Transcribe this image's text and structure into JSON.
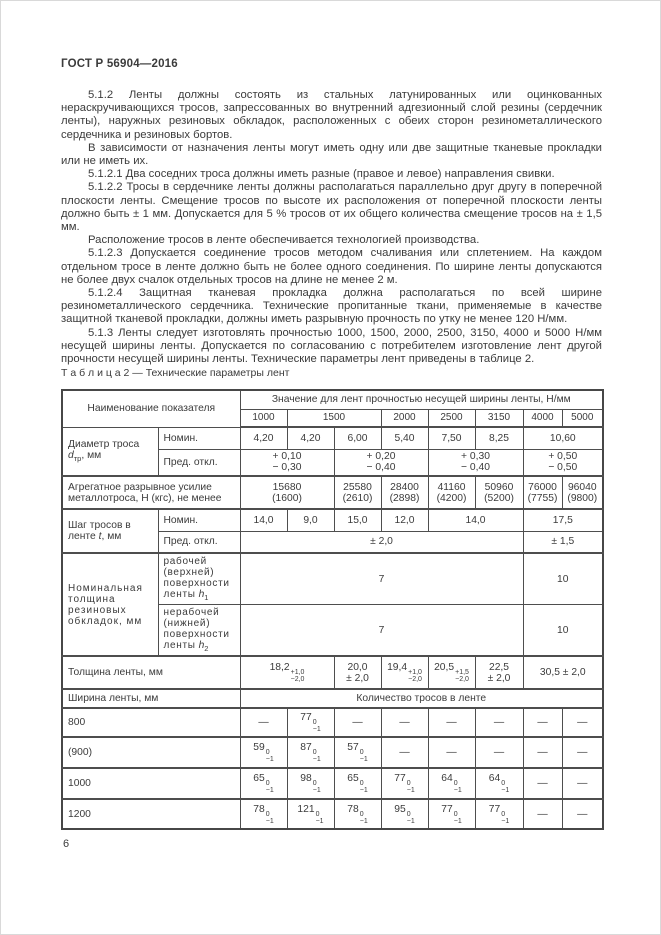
{
  "header": {
    "title": "ГОСТ Р 56904—2016"
  },
  "page_number": "6",
  "paragraphs": [
    "5.1.2 Ленты должны состоять из стальных латунированных или оцинкованных нераскручивающихся тросов, запрессованных во внутренний адгезионный слой резины (сердечник ленты), наружных резиновых обкладок, расположенных с обеих сторон резинометаллического сердечника и резиновых бортов.",
    "В зависимости от назначения ленты могут иметь одну или две защитные тканевые прокладки или не иметь их.",
    "5.1.2.1 Два соседних троса должны иметь разные (правое и левое) направления свивки.",
    "5.1.2.2 Тросы в сердечнике ленты должны располагаться параллельно друг другу в поперечной плоскости ленты. Смещение тросов по высоте их расположения от поперечной плоскости ленты должно быть ± 1 мм. Допускается для 5 % тросов от их общего количества смещение тросов на ± 1,5 мм.",
    "Расположение тросов в ленте обеспечивается технологией производства.",
    "5.1.2.3 Допускается соединение тросов методом счаливания или сплетением. На каждом отдельном тросе в ленте должно быть не более одного соединения. По ширине ленты допускаются не более двух счалок отдельных тросов на длине не менее 2 м.",
    "5.1.2.4 Защитная тканевая прокладка должна располагаться по всей ширине резинометаллического сердечника. Технические пропитанные ткани, применяемые в качестве защитной тканевой прокладки, должны иметь разрывную прочность по утку не менее 120 Н/мм.",
    "5.1.3 Ленты следует изготовлять прочностью 1000, 1500, 2000, 2500, 3150, 4000 и 5000 Н/мм несущей ширины ленты. Допускается по согласованию с потребителем изготовление лент другой прочности несущей ширины ленты. Технические параметры лент приведены в таблице 2."
  ],
  "table2": {
    "caption": "Т а б л и ц а  2 — Технические параметры лент",
    "head": {
      "name": "Наименование  показателя",
      "values_title": "Значение для лент прочностью несущей ширины ленты, Н/мм",
      "strengths": [
        "1000",
        "1500",
        "2000",
        "2500",
        "3150",
        "4000",
        "5000"
      ]
    },
    "diameter": {
      "label": "Диаметр троса",
      "sym": "d",
      "sym_sub": "тр",
      "unit": ", мм",
      "nominal_label": "Номин.",
      "nominal": [
        "4,20",
        "4,20",
        "6,00",
        "5,40",
        "7,50",
        "8,25",
        "10,60"
      ],
      "deviation_label": "Пред. откл.",
      "deviation": [
        {
          "plus": "+ 0,10",
          "minus": "− 0,30"
        },
        {
          "plus": "+ 0,20",
          "minus": "− 0,40"
        },
        {
          "plus": "+ 0,30",
          "minus": "− 0,40"
        },
        {
          "plus": "+ 0,50",
          "minus": "− 0,50"
        }
      ]
    },
    "breaking_force": {
      "label": "Агрегатное разрывное усилие металлотроса, Н (кгс), не менее",
      "values": [
        {
          "n": "15680",
          "kgs": "(1600)"
        },
        {
          "n": "25580",
          "kgs": "(2610)"
        },
        {
          "n": "28400",
          "kgs": "(2898)"
        },
        {
          "n": "41160",
          "kgs": "(4200)"
        },
        {
          "n": "50960",
          "kgs": "(5200)"
        },
        {
          "n": "76000",
          "kgs": "(7755)"
        },
        {
          "n": "96040",
          "kgs": "(9800)"
        }
      ]
    },
    "pitch": {
      "label": "Шаг тросов в ленте",
      "sym": "t",
      "unit": ", мм",
      "nominal_label": "Номин.",
      "nominal": [
        "14,0",
        "9,0",
        "15,0",
        "12,0",
        "14,0",
        "17,5"
      ],
      "deviation_label": "Пред. откл.",
      "deviation": [
        "± 2,0",
        "± 1,5"
      ]
    },
    "cover": {
      "label": "Номинальная\nтолщина\nрезиновых\nобкладок, мм",
      "h1_label": "рабочей\n(верхней)\nповерхности\nленты",
      "h1_sym": "h",
      "h1_sub": "1",
      "h1_values": [
        "7",
        "10"
      ],
      "h2_label": "нерабочей\n(нижней)\nповерхности\nленты",
      "h2_sym": "h",
      "h2_sub": "2",
      "h2_values": [
        "7",
        "10"
      ]
    },
    "thickness": {
      "label": "Толщина ленты, мм",
      "cells": [
        {
          "base": "18,2",
          "sup": "+1,0",
          "sub": "−2,0"
        },
        {
          "line1": "20,0",
          "line2": "± 2,0"
        },
        {
          "base": "19,4",
          "sup": "+1,0",
          "sub": "−2,0"
        },
        {
          "base": "20,5",
          "sup": "+1,5",
          "sub": "−2,0"
        },
        {
          "line1": "22,5",
          "line2": "± 2,0"
        },
        {
          "single": "30,5 ± 2,0"
        }
      ]
    },
    "width": {
      "label": "Ширина ленты, мм",
      "count_title": "Количество тросов в ленте",
      "rows": [
        {
          "w": "800",
          "cells": [
            {
              "d": "—"
            },
            {
              "base": "77",
              "sup": "0",
              "sub": "−1"
            },
            {
              "d": "—"
            },
            {
              "d": "—"
            },
            {
              "d": "—"
            },
            {
              "d": "—"
            },
            {
              "d": "—"
            },
            {
              "d": "—"
            }
          ]
        },
        {
          "w": "(900)",
          "cells": [
            {
              "base": "59",
              "sup": "0",
              "sub": "−1"
            },
            {
              "base": "87",
              "sup": "0",
              "sub": "−1"
            },
            {
              "base": "57",
              "sup": "0",
              "sub": "−1"
            },
            {
              "d": "—"
            },
            {
              "d": "—"
            },
            {
              "d": "—"
            },
            {
              "d": "—"
            },
            {
              "d": "—"
            }
          ]
        },
        {
          "w": "1000",
          "cells": [
            {
              "base": "65",
              "sup": "0",
              "sub": "−1"
            },
            {
              "base": "98",
              "sup": "0",
              "sub": "−1"
            },
            {
              "base": "65",
              "sup": "0",
              "sub": "−1"
            },
            {
              "base": "77",
              "sup": "0",
              "sub": "−1"
            },
            {
              "base": "64",
              "sup": "0",
              "sub": "−1"
            },
            {
              "base": "64",
              "sup": "0",
              "sub": "−1"
            },
            {
              "d": "—"
            },
            {
              "d": "—"
            }
          ]
        },
        {
          "w": "1200",
          "cells": [
            {
              "base": "78",
              "sup": "0",
              "sub": "−1"
            },
            {
              "base": "121",
              "sup": "0",
              "sub": "−1"
            },
            {
              "base": "78",
              "sup": "0",
              "sub": "−1"
            },
            {
              "base": "95",
              "sup": "0",
              "sub": "−1"
            },
            {
              "base": "77",
              "sup": "0",
              "sub": "−1"
            },
            {
              "base": "77",
              "sup": "0",
              "sub": "−1"
            },
            {
              "d": "—"
            },
            {
              "d": "—"
            }
          ]
        }
      ]
    }
  }
}
